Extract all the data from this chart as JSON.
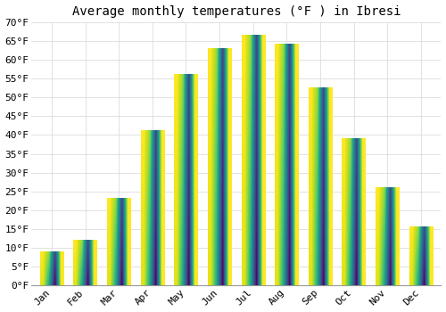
{
  "title": "Average monthly temperatures (°F ) in Ibresi",
  "months": [
    "Jan",
    "Feb",
    "Mar",
    "Apr",
    "May",
    "Jun",
    "Jul",
    "Aug",
    "Sep",
    "Oct",
    "Nov",
    "Dec"
  ],
  "values": [
    9,
    12,
    23,
    41,
    56,
    63,
    66.5,
    64,
    52.5,
    39,
    26,
    15.5
  ],
  "bar_color_bottom": "#F5A623",
  "bar_color_top": "#FFD966",
  "ylim": [
    0,
    70
  ],
  "yticks": [
    0,
    5,
    10,
    15,
    20,
    25,
    30,
    35,
    40,
    45,
    50,
    55,
    60,
    65,
    70
  ],
  "ytick_labels": [
    "0°F",
    "5°F",
    "10°F",
    "15°F",
    "20°F",
    "25°F",
    "30°F",
    "35°F",
    "40°F",
    "45°F",
    "50°F",
    "55°F",
    "60°F",
    "65°F",
    "70°F"
  ],
  "background_color": "#ffffff",
  "grid_color": "#dddddd",
  "title_fontsize": 10,
  "tick_fontsize": 8,
  "bar_width": 0.7,
  "fig_width": 5.0,
  "fig_height": 3.5,
  "dpi": 100
}
